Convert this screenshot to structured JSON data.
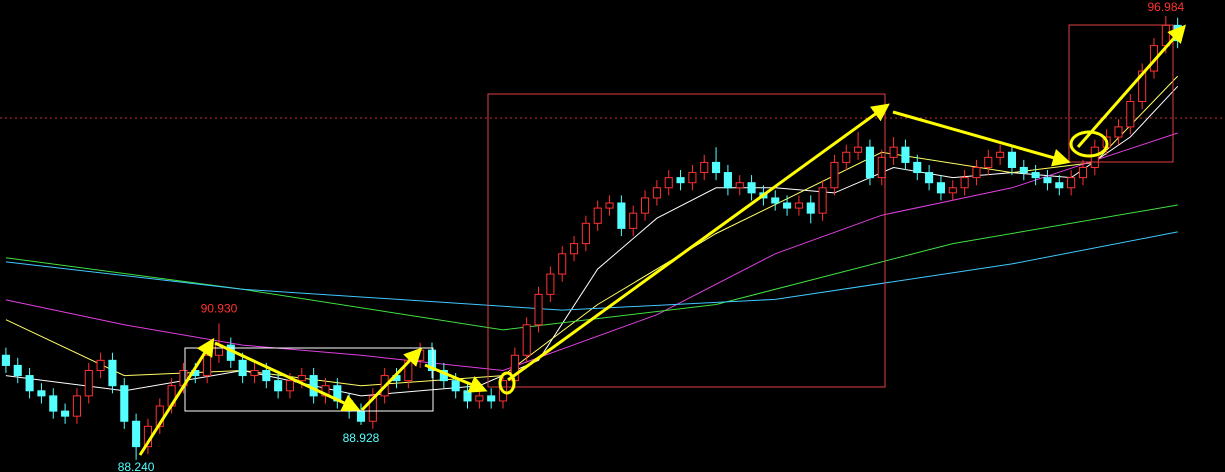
{
  "chart_data": {
    "type": "candlestick",
    "up_color": "#ff3232",
    "down_color": "#54ffff",
    "xlim": [
      -0.5,
      103
    ],
    "ylim": [
      88,
      97.3
    ],
    "open": [
      90.3,
      90.1,
      89.9,
      89.6,
      89.5,
      89.2,
      89.1,
      89.5,
      90.0,
      90.2,
      89.7,
      89.0,
      88.5,
      88.9,
      89.3,
      89.7,
      90.0,
      89.9,
      90.3,
      90.5,
      90.2,
      89.9,
      90.0,
      89.8,
      89.6,
      89.8,
      89.9,
      89.5,
      89.7,
      89.4,
      89.2,
      89.0,
      89.5,
      89.9,
      89.8,
      90.2,
      90.4,
      90.0,
      89.8,
      89.6,
      89.4,
      89.5,
      89.4,
      89.8,
      90.3,
      90.9,
      91.5,
      91.9,
      92.3,
      92.5,
      92.9,
      93.2,
      93.3,
      92.8,
      93.1,
      93.4,
      93.6,
      93.8,
      93.7,
      93.9,
      94.1,
      93.9,
      93.6,
      93.7,
      93.5,
      93.4,
      93.3,
      93.2,
      93.3,
      93.1,
      93.6,
      94.1,
      94.3,
      94.4,
      93.8,
      94.2,
      94.4,
      94.1,
      93.9,
      93.7,
      93.5,
      93.6,
      93.8,
      94.0,
      94.2,
      94.3,
      94.0,
      93.9,
      93.8,
      93.7,
      93.6,
      93.8,
      94.0,
      94.4,
      94.6,
      94.8,
      95.3,
      95.9,
      96.4,
      96.8
    ],
    "high": [
      90.45,
      90.25,
      90.05,
      89.75,
      89.65,
      89.35,
      89.65,
      90.15,
      90.35,
      90.35,
      89.85,
      89.15,
      89.05,
      89.45,
      89.85,
      90.15,
      90.15,
      90.45,
      90.93,
      90.65,
      90.35,
      90.15,
      90.15,
      89.95,
      89.95,
      90.05,
      90.05,
      89.85,
      89.85,
      89.55,
      89.35,
      89.65,
      90.05,
      90.05,
      90.35,
      90.55,
      90.55,
      90.15,
      89.95,
      89.75,
      89.65,
      89.65,
      89.95,
      90.45,
      91.05,
      91.65,
      92.05,
      92.45,
      92.65,
      93.05,
      93.35,
      93.45,
      93.45,
      93.25,
      93.55,
      93.75,
      93.95,
      93.95,
      94.05,
      94.25,
      94.4,
      94.05,
      93.85,
      93.85,
      93.65,
      93.55,
      93.45,
      93.45,
      93.45,
      93.75,
      94.25,
      94.45,
      94.7,
      94.55,
      94.35,
      94.6,
      94.55,
      94.25,
      94.05,
      93.85,
      93.75,
      93.95,
      94.15,
      94.35,
      94.45,
      94.45,
      94.15,
      94.05,
      93.95,
      93.85,
      93.95,
      94.15,
      94.55,
      94.75,
      94.95,
      95.45,
      96.05,
      96.55,
      96.984,
      96.95
    ],
    "low": [
      89.95,
      89.75,
      89.45,
      89.35,
      89.05,
      88.95,
      88.95,
      89.35,
      89.85,
      89.55,
      88.85,
      88.24,
      88.35,
      88.75,
      89.15,
      89.55,
      89.75,
      89.75,
      90.15,
      90.05,
      89.75,
      89.75,
      89.65,
      89.45,
      89.45,
      89.65,
      89.35,
      89.35,
      89.25,
      89.05,
      88.928,
      88.85,
      89.35,
      89.65,
      89.65,
      90.05,
      89.85,
      89.65,
      89.45,
      89.25,
      89.25,
      89.25,
      89.25,
      89.65,
      90.15,
      90.75,
      91.35,
      91.75,
      92.15,
      92.35,
      92.75,
      93.05,
      92.65,
      92.65,
      92.95,
      93.25,
      93.45,
      93.55,
      93.55,
      93.75,
      93.75,
      93.45,
      93.45,
      93.35,
      93.25,
      93.15,
      93.05,
      93.05,
      92.9,
      92.95,
      93.45,
      93.95,
      94.15,
      93.65,
      93.65,
      94.05,
      93.95,
      93.75,
      93.55,
      93.35,
      93.35,
      93.45,
      93.65,
      93.85,
      94.05,
      93.85,
      93.75,
      93.65,
      93.55,
      93.45,
      93.45,
      93.65,
      93.85,
      94.25,
      94.45,
      94.65,
      95.15,
      95.75,
      96.25,
      96.35
    ],
    "close": [
      90.1,
      89.9,
      89.6,
      89.5,
      89.2,
      89.1,
      89.5,
      90.0,
      90.2,
      89.7,
      89.0,
      88.5,
      88.9,
      89.3,
      89.7,
      90.0,
      89.9,
      90.3,
      90.5,
      90.2,
      89.9,
      90.0,
      89.8,
      89.6,
      89.8,
      89.9,
      89.5,
      89.7,
      89.4,
      89.2,
      89.0,
      89.5,
      89.9,
      89.8,
      90.2,
      90.4,
      90.0,
      89.8,
      89.6,
      89.4,
      89.5,
      89.4,
      89.8,
      90.3,
      90.9,
      91.5,
      91.9,
      92.3,
      92.5,
      92.9,
      93.2,
      93.3,
      92.8,
      93.1,
      93.4,
      93.6,
      93.8,
      93.7,
      93.9,
      94.1,
      93.9,
      93.6,
      93.7,
      93.5,
      93.4,
      93.3,
      93.2,
      93.3,
      93.1,
      93.6,
      94.1,
      94.3,
      94.4,
      93.8,
      94.2,
      94.4,
      94.1,
      93.9,
      93.7,
      93.5,
      93.6,
      93.8,
      94.0,
      94.2,
      94.3,
      94.0,
      93.9,
      93.8,
      93.7,
      93.6,
      93.8,
      94.0,
      94.4,
      94.6,
      94.8,
      95.3,
      95.9,
      96.4,
      96.8,
      96.5
    ],
    "lines": [
      {
        "color": "#ffffff",
        "x": [
          0,
          10,
          20,
          30,
          40,
          45,
          50,
          55,
          60,
          65,
          70,
          75,
          80,
          85,
          90,
          95,
          99
        ],
        "values": [
          89.9,
          89.6,
          90.0,
          89.5,
          89.7,
          90.2,
          92.0,
          93.0,
          93.6,
          93.6,
          93.5,
          94.0,
          93.8,
          93.9,
          93.8,
          94.6,
          95.6
        ]
      },
      {
        "color": "#ffff66",
        "x": [
          0,
          10,
          20,
          30,
          42,
          50,
          60,
          74,
          85,
          92,
          99
        ],
        "values": [
          91.0,
          89.9,
          90.0,
          89.7,
          89.9,
          91.3,
          92.7,
          94.3,
          93.9,
          94.1,
          95.8
        ]
      },
      {
        "color": "#e040e0",
        "x": [
          0,
          10,
          20,
          30,
          42,
          55,
          65,
          74,
          85,
          99
        ],
        "values": [
          91.39,
          90.9,
          90.5,
          90.3,
          90.0,
          91.1,
          92.3,
          93.06,
          93.6,
          94.68
        ]
      },
      {
        "color": "#40e040",
        "x": [
          0,
          20,
          42,
          60,
          80,
          99
        ],
        "values": [
          92.22,
          91.6,
          90.8,
          91.3,
          92.5,
          93.26
        ]
      },
      {
        "color": "#40c8ff",
        "x": [
          0,
          20,
          47,
          65,
          85,
          99
        ],
        "values": [
          92.14,
          91.6,
          91.19,
          91.4,
          92.1,
          92.73
        ]
      }
    ],
    "hline": {
      "value": 94.975,
      "color": "#c83232"
    },
    "annotations": [
      {
        "x": 18,
        "value": 90.93,
        "label": "90.930",
        "color": "#ff3232",
        "side": "above"
      },
      {
        "x": 30,
        "value": 88.928,
        "label": "88.928",
        "color": "#54ffff",
        "side": "below"
      },
      {
        "x": 11,
        "value": 88.24,
        "label": "88.240",
        "color": "#54ffff",
        "side": "below"
      },
      {
        "x": 98,
        "value": 96.984,
        "label": "96.984",
        "color": "#ff3232",
        "side": "above"
      }
    ]
  }
}
